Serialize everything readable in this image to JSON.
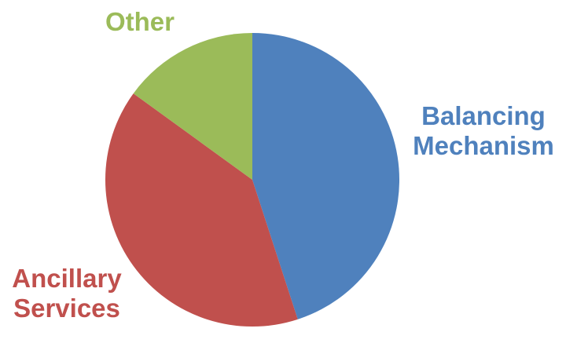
{
  "chart_data": {
    "type": "pie",
    "title": "",
    "legend": "none",
    "slices": [
      {
        "label_lines": [
          "Balancing",
          "Mechanism"
        ],
        "value": 45,
        "color": "#4F81BD"
      },
      {
        "label_lines": [
          "Ancillary",
          "Services"
        ],
        "value": 40,
        "color": "#C0504D"
      },
      {
        "label_lines": [
          "Other"
        ],
        "value": 15,
        "color": "#9BBB59"
      }
    ]
  }
}
